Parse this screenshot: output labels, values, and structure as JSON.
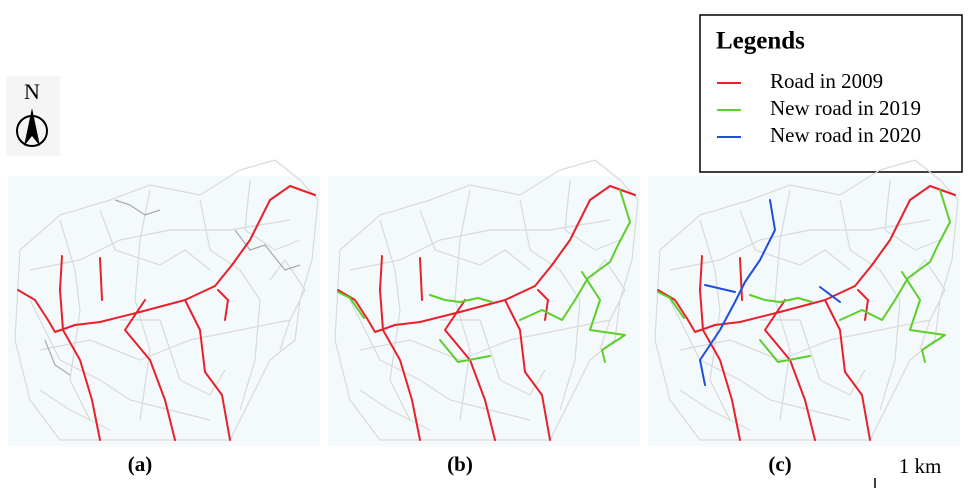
{
  "compass": {
    "label": "N"
  },
  "legend": {
    "title": "Legends",
    "items": [
      {
        "label": "Road in 2009",
        "color": "#e8202a"
      },
      {
        "label": "New road in 2019",
        "color": "#5ccf2a"
      },
      {
        "label": "New road in 2020",
        "color": "#1f4fd8"
      }
    ]
  },
  "panels": [
    {
      "label": "(a)"
    },
    {
      "label": "(b)"
    },
    {
      "label": "(c)"
    }
  ],
  "scale_bar": {
    "label": "1 km"
  }
}
